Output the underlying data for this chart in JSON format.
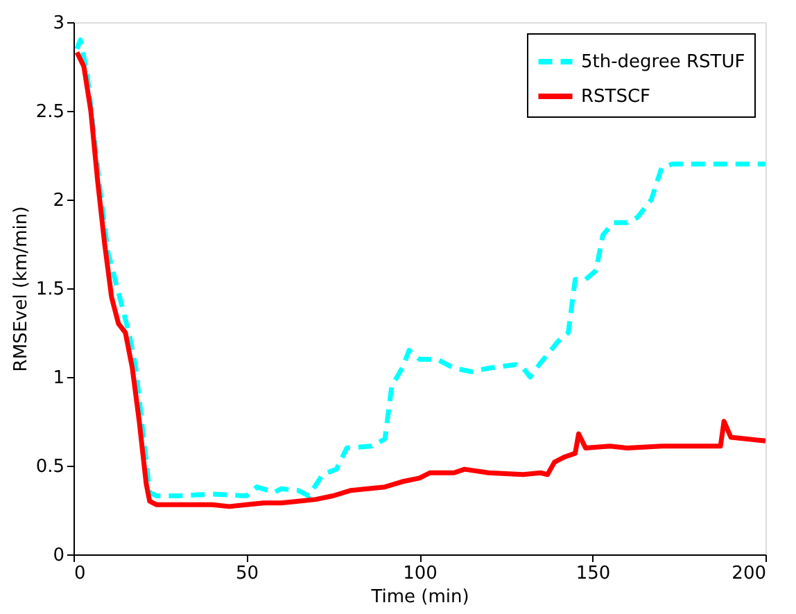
{
  "chart_data": {
    "type": "line",
    "xlabel": "Time (min)",
    "ylabel": "RMSEvel (km/min)",
    "xlim": [
      0,
      200
    ],
    "xticks": [
      0,
      50,
      100,
      150,
      200
    ],
    "ylim": [
      0,
      3
    ],
    "yticks": [
      0,
      0.5,
      1,
      1.5,
      2,
      2.5,
      3
    ],
    "grid": false,
    "legend": "top right",
    "marker": "none",
    "series": [
      {
        "name": "5th-degree RSTUF",
        "color": "#00ffff",
        "line_style": "dashed",
        "x": [
          1,
          2,
          4,
          6,
          8,
          10,
          12,
          14,
          16,
          18,
          20,
          22,
          24,
          30,
          40,
          50,
          53,
          58,
          60,
          65,
          68,
          72,
          76,
          79,
          86,
          90,
          92,
          95,
          97,
          100,
          105,
          110,
          115,
          120,
          128,
          130,
          132,
          135,
          138,
          140,
          143,
          145,
          148,
          151,
          153,
          156,
          160,
          163,
          167,
          170,
          173,
          175,
          200
        ],
        "values": [
          2.85,
          2.9,
          2.7,
          2.35,
          2.0,
          1.7,
          1.55,
          1.4,
          1.25,
          1.05,
          0.7,
          0.35,
          0.33,
          0.33,
          0.34,
          0.33,
          0.38,
          0.35,
          0.37,
          0.36,
          0.33,
          0.45,
          0.48,
          0.6,
          0.61,
          0.65,
          0.95,
          1.05,
          1.15,
          1.1,
          1.1,
          1.05,
          1.03,
          1.05,
          1.07,
          1.05,
          1.0,
          1.08,
          1.15,
          1.2,
          1.25,
          1.55,
          1.55,
          1.6,
          1.8,
          1.87,
          1.87,
          1.9,
          2.0,
          2.18,
          2.2,
          2.2,
          2.2
        ]
      },
      {
        "name": "RSTSCF",
        "color": "#ff0000",
        "line_style": "solid",
        "x": [
          1,
          3,
          5,
          7,
          9,
          11,
          13,
          15,
          17,
          19,
          21,
          22,
          24,
          30,
          40,
          45,
          50,
          55,
          60,
          65,
          70,
          75,
          80,
          85,
          90,
          95,
          100,
          103,
          110,
          113,
          120,
          130,
          135,
          137,
          139,
          142,
          145,
          146,
          148,
          155,
          160,
          170,
          180,
          187,
          188,
          190,
          200
        ],
        "values": [
          2.83,
          2.75,
          2.5,
          2.1,
          1.75,
          1.45,
          1.3,
          1.25,
          1.05,
          0.75,
          0.4,
          0.3,
          0.28,
          0.28,
          0.28,
          0.27,
          0.28,
          0.29,
          0.29,
          0.3,
          0.31,
          0.33,
          0.36,
          0.37,
          0.38,
          0.41,
          0.43,
          0.46,
          0.46,
          0.48,
          0.46,
          0.45,
          0.46,
          0.45,
          0.52,
          0.55,
          0.57,
          0.68,
          0.6,
          0.61,
          0.6,
          0.61,
          0.61,
          0.61,
          0.75,
          0.66,
          0.64
        ]
      }
    ]
  }
}
